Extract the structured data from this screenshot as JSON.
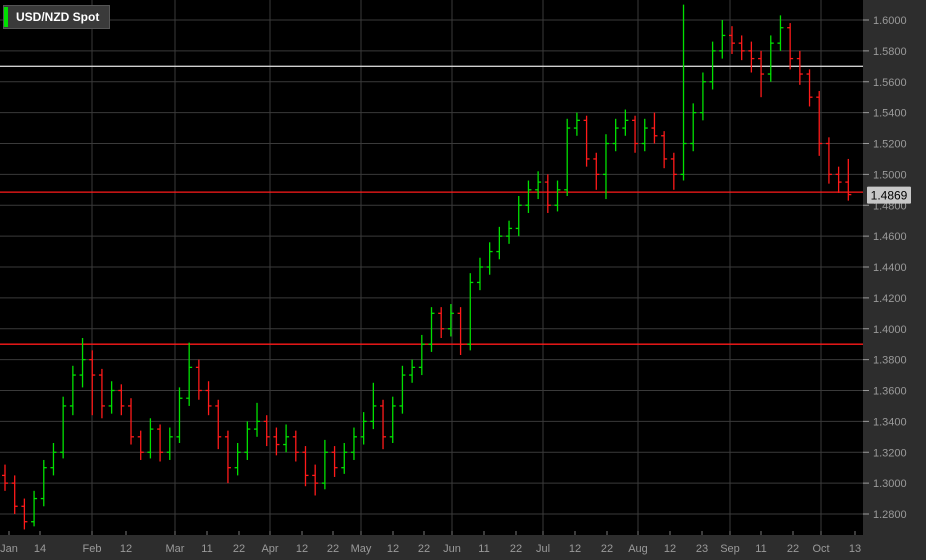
{
  "chart_data": {
    "type": "ohlc",
    "title": "USD/NZD Spot",
    "legend_color": "#00e000",
    "up_color": "#00e000",
    "down_color": "#ff1a1a",
    "background": "#000000",
    "ylim": [
      1.27,
      1.6134
    ],
    "y_ticks": [
      "1.2800",
      "1.3000",
      "1.3200",
      "1.3400",
      "1.3600",
      "1.3800",
      "1.4000",
      "1.4200",
      "1.4400",
      "1.4600",
      "1.4800",
      "1.5000",
      "1.5200",
      "1.5400",
      "1.5600",
      "1.5800",
      "1.6000"
    ],
    "x_ticks": [
      "Jan",
      "14",
      "Feb",
      "12",
      "Mar",
      "11",
      "22",
      "Apr",
      "12",
      "22",
      "May",
      "12",
      "22",
      "Jun",
      "11",
      "22",
      "Jul",
      "12",
      "22",
      "Aug",
      "12",
      "23",
      "Sep",
      "11",
      "22",
      "Oct",
      "13"
    ],
    "last_price": "1.4869",
    "horizontal_lines": [
      {
        "value": 1.57,
        "color": "#cfcfcf"
      },
      {
        "value": 1.4885,
        "color": "#ff1a1a"
      },
      {
        "value": 1.39,
        "color": "#ff1a1a"
      }
    ],
    "bars": [
      [
        1.305,
        1.312,
        1.295,
        1.3
      ],
      [
        1.3,
        1.305,
        1.28,
        1.285
      ],
      [
        1.285,
        1.29,
        1.27,
        1.275
      ],
      [
        1.275,
        1.295,
        1.272,
        1.29
      ],
      [
        1.29,
        1.315,
        1.285,
        1.31
      ],
      [
        1.31,
        1.326,
        1.305,
        1.32
      ],
      [
        1.32,
        1.356,
        1.316,
        1.35
      ],
      [
        1.35,
        1.376,
        1.344,
        1.37
      ],
      [
        1.37,
        1.394,
        1.362,
        1.38
      ],
      [
        1.38,
        1.386,
        1.344,
        1.37
      ],
      [
        1.37,
        1.374,
        1.342,
        1.35
      ],
      [
        1.35,
        1.366,
        1.345,
        1.36
      ],
      [
        1.36,
        1.364,
        1.344,
        1.35
      ],
      [
        1.35,
        1.355,
        1.325,
        1.33
      ],
      [
        1.33,
        1.334,
        1.315,
        1.32
      ],
      [
        1.32,
        1.342,
        1.316,
        1.335
      ],
      [
        1.335,
        1.338,
        1.314,
        1.32
      ],
      [
        1.32,
        1.336,
        1.315,
        1.33
      ],
      [
        1.33,
        1.362,
        1.326,
        1.355
      ],
      [
        1.355,
        1.391,
        1.35,
        1.375
      ],
      [
        1.375,
        1.38,
        1.354,
        1.36
      ],
      [
        1.36,
        1.366,
        1.344,
        1.35
      ],
      [
        1.35,
        1.354,
        1.322,
        1.33
      ],
      [
        1.33,
        1.334,
        1.3,
        1.31
      ],
      [
        1.31,
        1.326,
        1.305,
        1.32
      ],
      [
        1.32,
        1.34,
        1.315,
        1.335
      ],
      [
        1.335,
        1.352,
        1.33,
        1.34
      ],
      [
        1.34,
        1.344,
        1.324,
        1.33
      ],
      [
        1.33,
        1.336,
        1.318,
        1.325
      ],
      [
        1.325,
        1.338,
        1.32,
        1.33
      ],
      [
        1.33,
        1.334,
        1.314,
        1.32
      ],
      [
        1.32,
        1.324,
        1.298,
        1.305
      ],
      [
        1.305,
        1.312,
        1.292,
        1.3
      ],
      [
        1.3,
        1.328,
        1.296,
        1.32
      ],
      [
        1.32,
        1.324,
        1.304,
        1.31
      ],
      [
        1.31,
        1.326,
        1.306,
        1.32
      ],
      [
        1.32,
        1.336,
        1.315,
        1.33
      ],
      [
        1.33,
        1.346,
        1.325,
        1.34
      ],
      [
        1.34,
        1.365,
        1.335,
        1.35
      ],
      [
        1.35,
        1.354,
        1.322,
        1.33
      ],
      [
        1.33,
        1.356,
        1.326,
        1.35
      ],
      [
        1.35,
        1.376,
        1.345,
        1.37
      ],
      [
        1.37,
        1.38,
        1.365,
        1.375
      ],
      [
        1.375,
        1.396,
        1.37,
        1.39
      ],
      [
        1.39,
        1.414,
        1.385,
        1.41
      ],
      [
        1.41,
        1.414,
        1.394,
        1.4
      ],
      [
        1.4,
        1.416,
        1.395,
        1.41
      ],
      [
        1.41,
        1.414,
        1.383,
        1.39
      ],
      [
        1.39,
        1.436,
        1.386,
        1.43
      ],
      [
        1.43,
        1.446,
        1.425,
        1.44
      ],
      [
        1.44,
        1.456,
        1.435,
        1.45
      ],
      [
        1.45,
        1.466,
        1.445,
        1.46
      ],
      [
        1.46,
        1.47,
        1.455,
        1.465
      ],
      [
        1.465,
        1.486,
        1.46,
        1.48
      ],
      [
        1.48,
        1.496,
        1.475,
        1.49
      ],
      [
        1.49,
        1.502,
        1.484,
        1.495
      ],
      [
        1.495,
        1.5,
        1.475,
        1.48
      ],
      [
        1.48,
        1.496,
        1.476,
        1.49
      ],
      [
        1.49,
        1.536,
        1.486,
        1.53
      ],
      [
        1.53,
        1.54,
        1.525,
        1.535
      ],
      [
        1.535,
        1.538,
        1.505,
        1.51
      ],
      [
        1.51,
        1.514,
        1.49,
        1.5
      ],
      [
        1.5,
        1.526,
        1.484,
        1.52
      ],
      [
        1.52,
        1.536,
        1.515,
        1.53
      ],
      [
        1.53,
        1.542,
        1.525,
        1.535
      ],
      [
        1.535,
        1.538,
        1.514,
        1.52
      ],
      [
        1.52,
        1.536,
        1.515,
        1.53
      ],
      [
        1.53,
        1.54,
        1.52,
        1.525
      ],
      [
        1.525,
        1.528,
        1.504,
        1.51
      ],
      [
        1.51,
        1.514,
        1.49,
        1.5
      ],
      [
        1.5,
        1.61,
        1.496,
        1.52
      ],
      [
        1.52,
        1.546,
        1.515,
        1.54
      ],
      [
        1.54,
        1.566,
        1.535,
        1.56
      ],
      [
        1.56,
        1.586,
        1.555,
        1.58
      ],
      [
        1.58,
        1.6,
        1.575,
        1.59
      ],
      [
        1.59,
        1.596,
        1.578,
        1.585
      ],
      [
        1.585,
        1.59,
        1.574,
        1.58
      ],
      [
        1.58,
        1.586,
        1.566,
        1.575
      ],
      [
        1.575,
        1.58,
        1.55,
        1.565
      ],
      [
        1.565,
        1.59,
        1.56,
        1.585
      ],
      [
        1.585,
        1.603,
        1.58,
        1.595
      ],
      [
        1.595,
        1.598,
        1.568,
        1.575
      ],
      [
        1.575,
        1.58,
        1.558,
        1.565
      ],
      [
        1.565,
        1.568,
        1.544,
        1.55
      ],
      [
        1.55,
        1.554,
        1.512,
        1.52
      ],
      [
        1.52,
        1.524,
        1.494,
        1.5
      ],
      [
        1.5,
        1.505,
        1.488,
        1.495
      ],
      [
        1.495,
        1.51,
        1.483,
        1.4869
      ]
    ]
  }
}
